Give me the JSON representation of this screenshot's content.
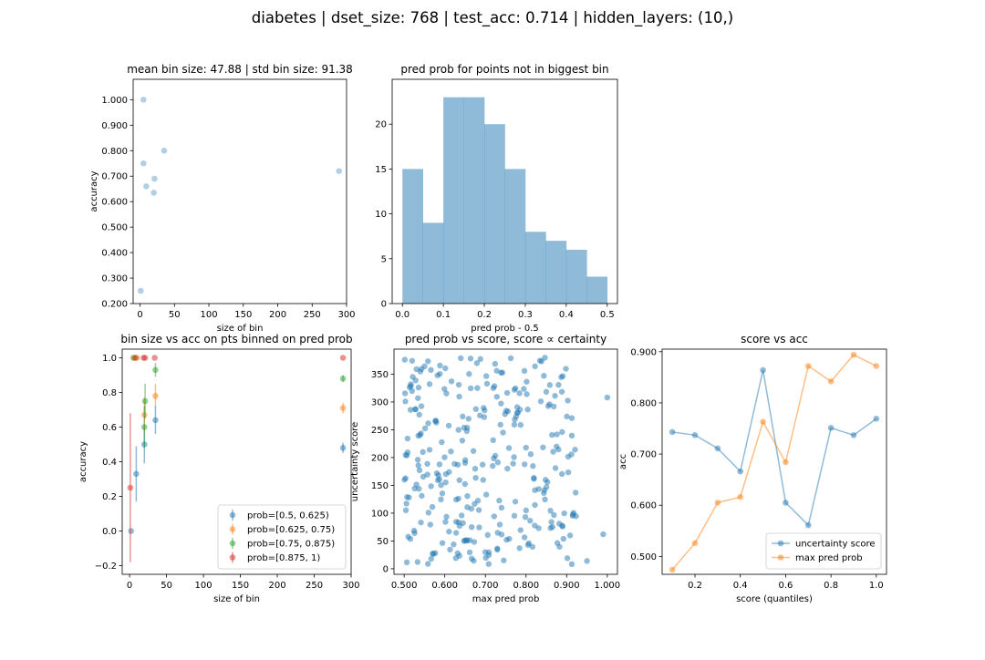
{
  "suptitle": "diabetes | dset_size: 768 | test_acc: 0.714 | hidden_layers: (10,)",
  "colors": {
    "c0": "#1f77b4",
    "c1": "#ff7f0e",
    "c2": "#2ca02c",
    "c3": "#d62728",
    "hist": "#1f77b4"
  },
  "chart_data": [
    {
      "id": "p1",
      "type": "scatter",
      "title": "mean bin size: 47.88 | std bin size: 91.38",
      "xlabel": "size of bin",
      "ylabel": "accuracy",
      "xlim": [
        -10,
        300
      ],
      "ylim": [
        0.2,
        1.08
      ],
      "xticks": [
        0,
        50,
        100,
        150,
        200,
        250,
        300
      ],
      "yticks": [
        0.2,
        0.3,
        0.4,
        0.5,
        0.6,
        0.7,
        0.8,
        0.9,
        1.0
      ],
      "points": [
        [
          1,
          0.25
        ],
        [
          5,
          1.0
        ],
        [
          5,
          0.75
        ],
        [
          9,
          0.66
        ],
        [
          20,
          0.635
        ],
        [
          21,
          0.69
        ],
        [
          35,
          0.8
        ],
        [
          289,
          0.72
        ]
      ]
    },
    {
      "id": "p2",
      "type": "histogram",
      "title": "pred prob for points not in biggest bin",
      "xlabel": "pred prob - 0.5",
      "ylabel": "",
      "xlim": [
        -0.025,
        0.525
      ],
      "ylim": [
        0,
        25
      ],
      "xticks": [
        0.0,
        0.1,
        0.2,
        0.3,
        0.4,
        0.5
      ],
      "yticks": [
        0,
        5,
        10,
        15,
        20
      ],
      "bins": [
        0.0,
        0.05,
        0.1,
        0.15,
        0.2,
        0.25,
        0.3,
        0.35,
        0.4,
        0.45,
        0.5
      ],
      "counts": [
        15,
        9,
        23,
        23,
        20,
        15,
        8,
        7,
        6,
        3
      ]
    },
    {
      "id": "p3",
      "type": "scatter",
      "title": "bin size vs acc on pts binned on pred prob",
      "xlabel": "size of bin",
      "ylabel": "accuracy",
      "xlim": [
        -10,
        300
      ],
      "ylim": [
        -0.25,
        1.05
      ],
      "xticks": [
        0,
        50,
        100,
        150,
        200,
        250,
        300
      ],
      "yticks": [
        -0.2,
        0.0,
        0.2,
        0.4,
        0.6,
        0.8,
        1.0
      ],
      "legend": "lower right",
      "series": [
        {
          "name": "prob=[0.5, 0.625)",
          "color": "c0",
          "points": [
            [
              2,
              0.0,
              0
            ],
            [
              9,
              0.33,
              0.16
            ],
            [
              20,
              0.5,
              0.11
            ],
            [
              35,
              0.64,
              0.08
            ],
            [
              289,
              0.48,
              0.03
            ]
          ]
        },
        {
          "name": "prob=[0.625, 0.75)",
          "color": "c1",
          "points": [
            [
              5,
              1.0,
              0
            ],
            [
              10,
              1.0,
              0
            ],
            [
              20,
              0.67,
              0.1
            ],
            [
              35,
              0.78,
              0.07
            ],
            [
              289,
              0.71,
              0.03
            ]
          ]
        },
        {
          "name": "prob=[0.75, 0.875)",
          "color": "c2",
          "points": [
            [
              6,
              1.0,
              0
            ],
            [
              20,
              0.6,
              0.12
            ],
            [
              21,
              0.75,
              0.1
            ],
            [
              35,
              0.93,
              0.04
            ],
            [
              289,
              0.88,
              0.02
            ]
          ]
        },
        {
          "name": "prob=[0.875, 1)",
          "color": "c3",
          "points": [
            [
              1,
              0.25,
              0.43
            ],
            [
              8,
              1.0,
              0
            ],
            [
              19,
              1.0,
              0
            ],
            [
              21,
              1.0,
              0
            ],
            [
              34,
              1.0,
              0
            ],
            [
              289,
              1.0,
              0
            ]
          ]
        }
      ]
    },
    {
      "id": "p4",
      "type": "scatter",
      "title": "pred prob vs score, score ∝ certainty",
      "xlabel": "max pred prob",
      "ylabel": "uncertainty score",
      "xlim": [
        0.475,
        1.025
      ],
      "ylim": [
        -10,
        395
      ],
      "xticks": [
        0.5,
        0.6,
        0.7,
        0.8,
        0.9,
        1.0
      ],
      "yticks": [
        0,
        50,
        100,
        150,
        200,
        250,
        300,
        350
      ],
      "n_points": 300,
      "seed": 7,
      "x_range": [
        0.5,
        0.995
      ],
      "y_range": [
        8,
        380
      ],
      "outliers": [
        [
          0.95,
          14
        ],
        [
          0.99,
          62
        ],
        [
          1.0,
          308
        ]
      ]
    },
    {
      "id": "p5",
      "type": "line",
      "title": "score vs acc",
      "xlabel": "score (quantiles)",
      "ylabel": "acc",
      "xlim": [
        0.055,
        1.045
      ],
      "ylim": [
        0.465,
        0.905
      ],
      "xticks": [
        0.2,
        0.4,
        0.6,
        0.8,
        1.0
      ],
      "yticks": [
        0.5,
        0.6,
        0.7,
        0.8,
        0.9
      ],
      "legend": "lower right",
      "x": [
        0.1,
        0.2,
        0.3,
        0.4,
        0.5,
        0.6,
        0.7,
        0.8,
        0.9,
        1.0
      ],
      "series": [
        {
          "name": "uncertainty score",
          "color": "c0",
          "values": [
            0.743,
            0.737,
            0.711,
            0.666,
            0.864,
            0.605,
            0.561,
            0.751,
            0.737,
            0.769
          ]
        },
        {
          "name": "max pred prob",
          "color": "c1",
          "values": [
            0.474,
            0.526,
            0.605,
            0.616,
            0.763,
            0.684,
            0.872,
            0.842,
            0.894,
            0.872
          ]
        }
      ]
    }
  ]
}
